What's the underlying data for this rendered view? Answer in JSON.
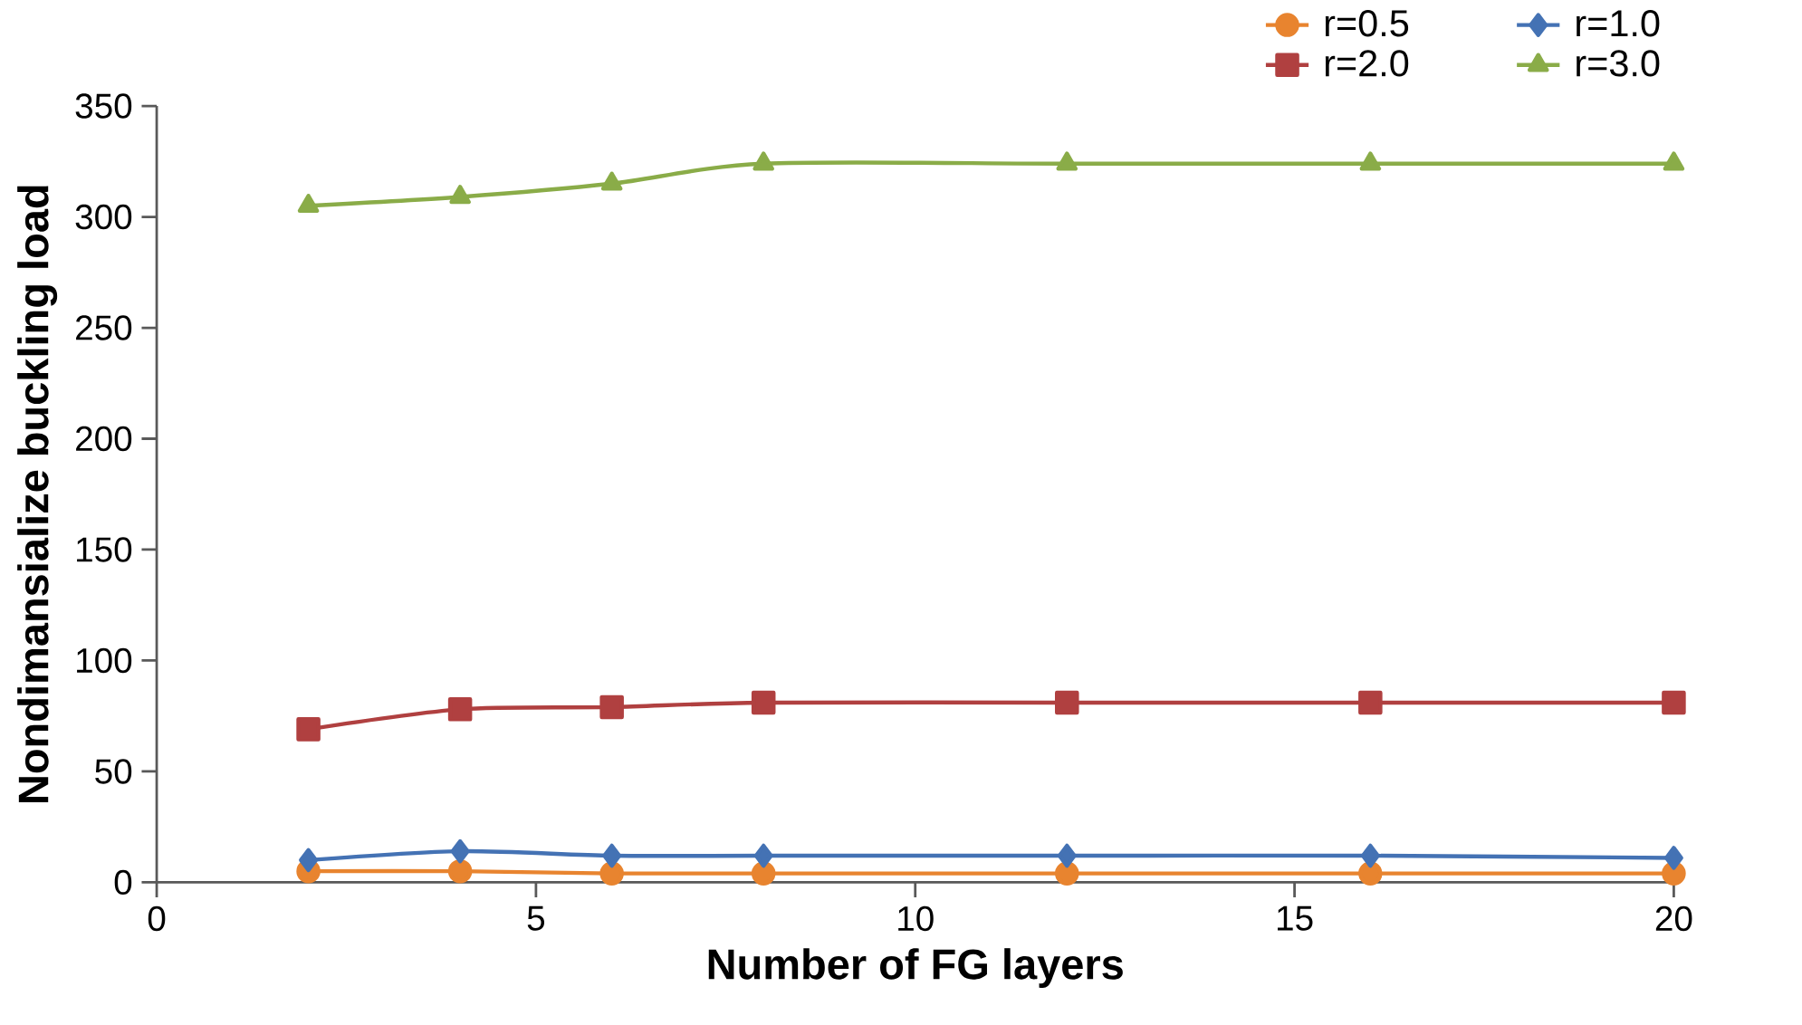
{
  "chart_data": {
    "type": "line",
    "xlabel": "Number of FG layers",
    "ylabel": "Nondimansialize buckling load",
    "x": [
      2,
      4,
      6,
      8,
      12,
      16,
      20
    ],
    "xlim": [
      0,
      20
    ],
    "xticks": [
      0,
      5,
      10,
      15,
      20
    ],
    "ylim": [
      0,
      350
    ],
    "yticks": [
      0,
      50,
      100,
      150,
      200,
      250,
      300,
      350
    ],
    "grid": false,
    "legend": "top right",
    "series": [
      {
        "name": "r=0.5",
        "color": "#e8842f",
        "marker": "circle",
        "values": [
          5,
          5,
          4,
          4,
          4,
          4,
          4
        ]
      },
      {
        "name": "r=1.0",
        "color": "#4472b4",
        "marker": "diamond",
        "values": [
          10,
          14,
          12,
          12,
          12,
          12,
          11
        ]
      },
      {
        "name": "r=2.0",
        "color": "#b04040",
        "marker": "square",
        "values": [
          69,
          78,
          79,
          81,
          81,
          81,
          81
        ]
      },
      {
        "name": "r=3.0",
        "color": "#8aac48",
        "marker": "triangle",
        "values": [
          305,
          309,
          315,
          324,
          324,
          324,
          324
        ]
      }
    ]
  }
}
